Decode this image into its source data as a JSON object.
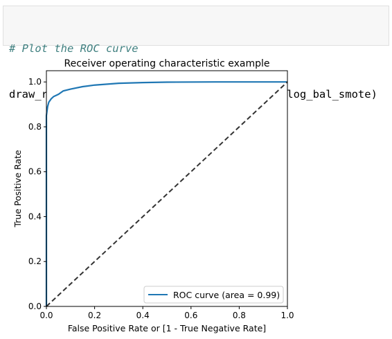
{
  "code_cell": {
    "comment_line": "# Plot the ROC curve",
    "code_line": "draw_roc(y_train_smote, y_train_pred_proba_log_bal_smote)"
  },
  "chart_data": {
    "type": "line",
    "title": "Receiver operating characteristic example",
    "xlabel": "False Positive Rate or [1 - True Negative Rate]",
    "ylabel": "True Positive Rate",
    "xlim": [
      0.0,
      1.0
    ],
    "ylim": [
      0.0,
      1.05
    ],
    "xticks": [
      0.0,
      0.2,
      0.4,
      0.6,
      0.8,
      1.0
    ],
    "yticks": [
      0.0,
      0.2,
      0.4,
      0.6,
      0.8,
      1.0
    ],
    "xtick_labels": [
      "0.0",
      "0.2",
      "0.4",
      "0.6",
      "0.8",
      "1.0"
    ],
    "ytick_labels": [
      "0.0",
      "0.2",
      "0.4",
      "0.6",
      "0.8",
      "1.0"
    ],
    "grid": false,
    "legend_position": "lower-right",
    "series": [
      {
        "name": "ROC curve (area = 0.99)",
        "color": "#1f77b4",
        "style": "solid",
        "x": [
          0.0,
          0.0,
          0.005,
          0.01,
          0.02,
          0.03,
          0.05,
          0.07,
          0.1,
          0.15,
          0.2,
          0.3,
          0.4,
          0.5,
          0.7,
          1.0
        ],
        "y": [
          0.0,
          0.85,
          0.89,
          0.91,
          0.925,
          0.935,
          0.945,
          0.96,
          0.968,
          0.979,
          0.986,
          0.994,
          0.997,
          0.999,
          1.0,
          1.0
        ]
      },
      {
        "name": "",
        "color": "#333333",
        "style": "dashed",
        "x": [
          0.0,
          1.0
        ],
        "y": [
          0.0,
          1.0
        ]
      }
    ]
  }
}
